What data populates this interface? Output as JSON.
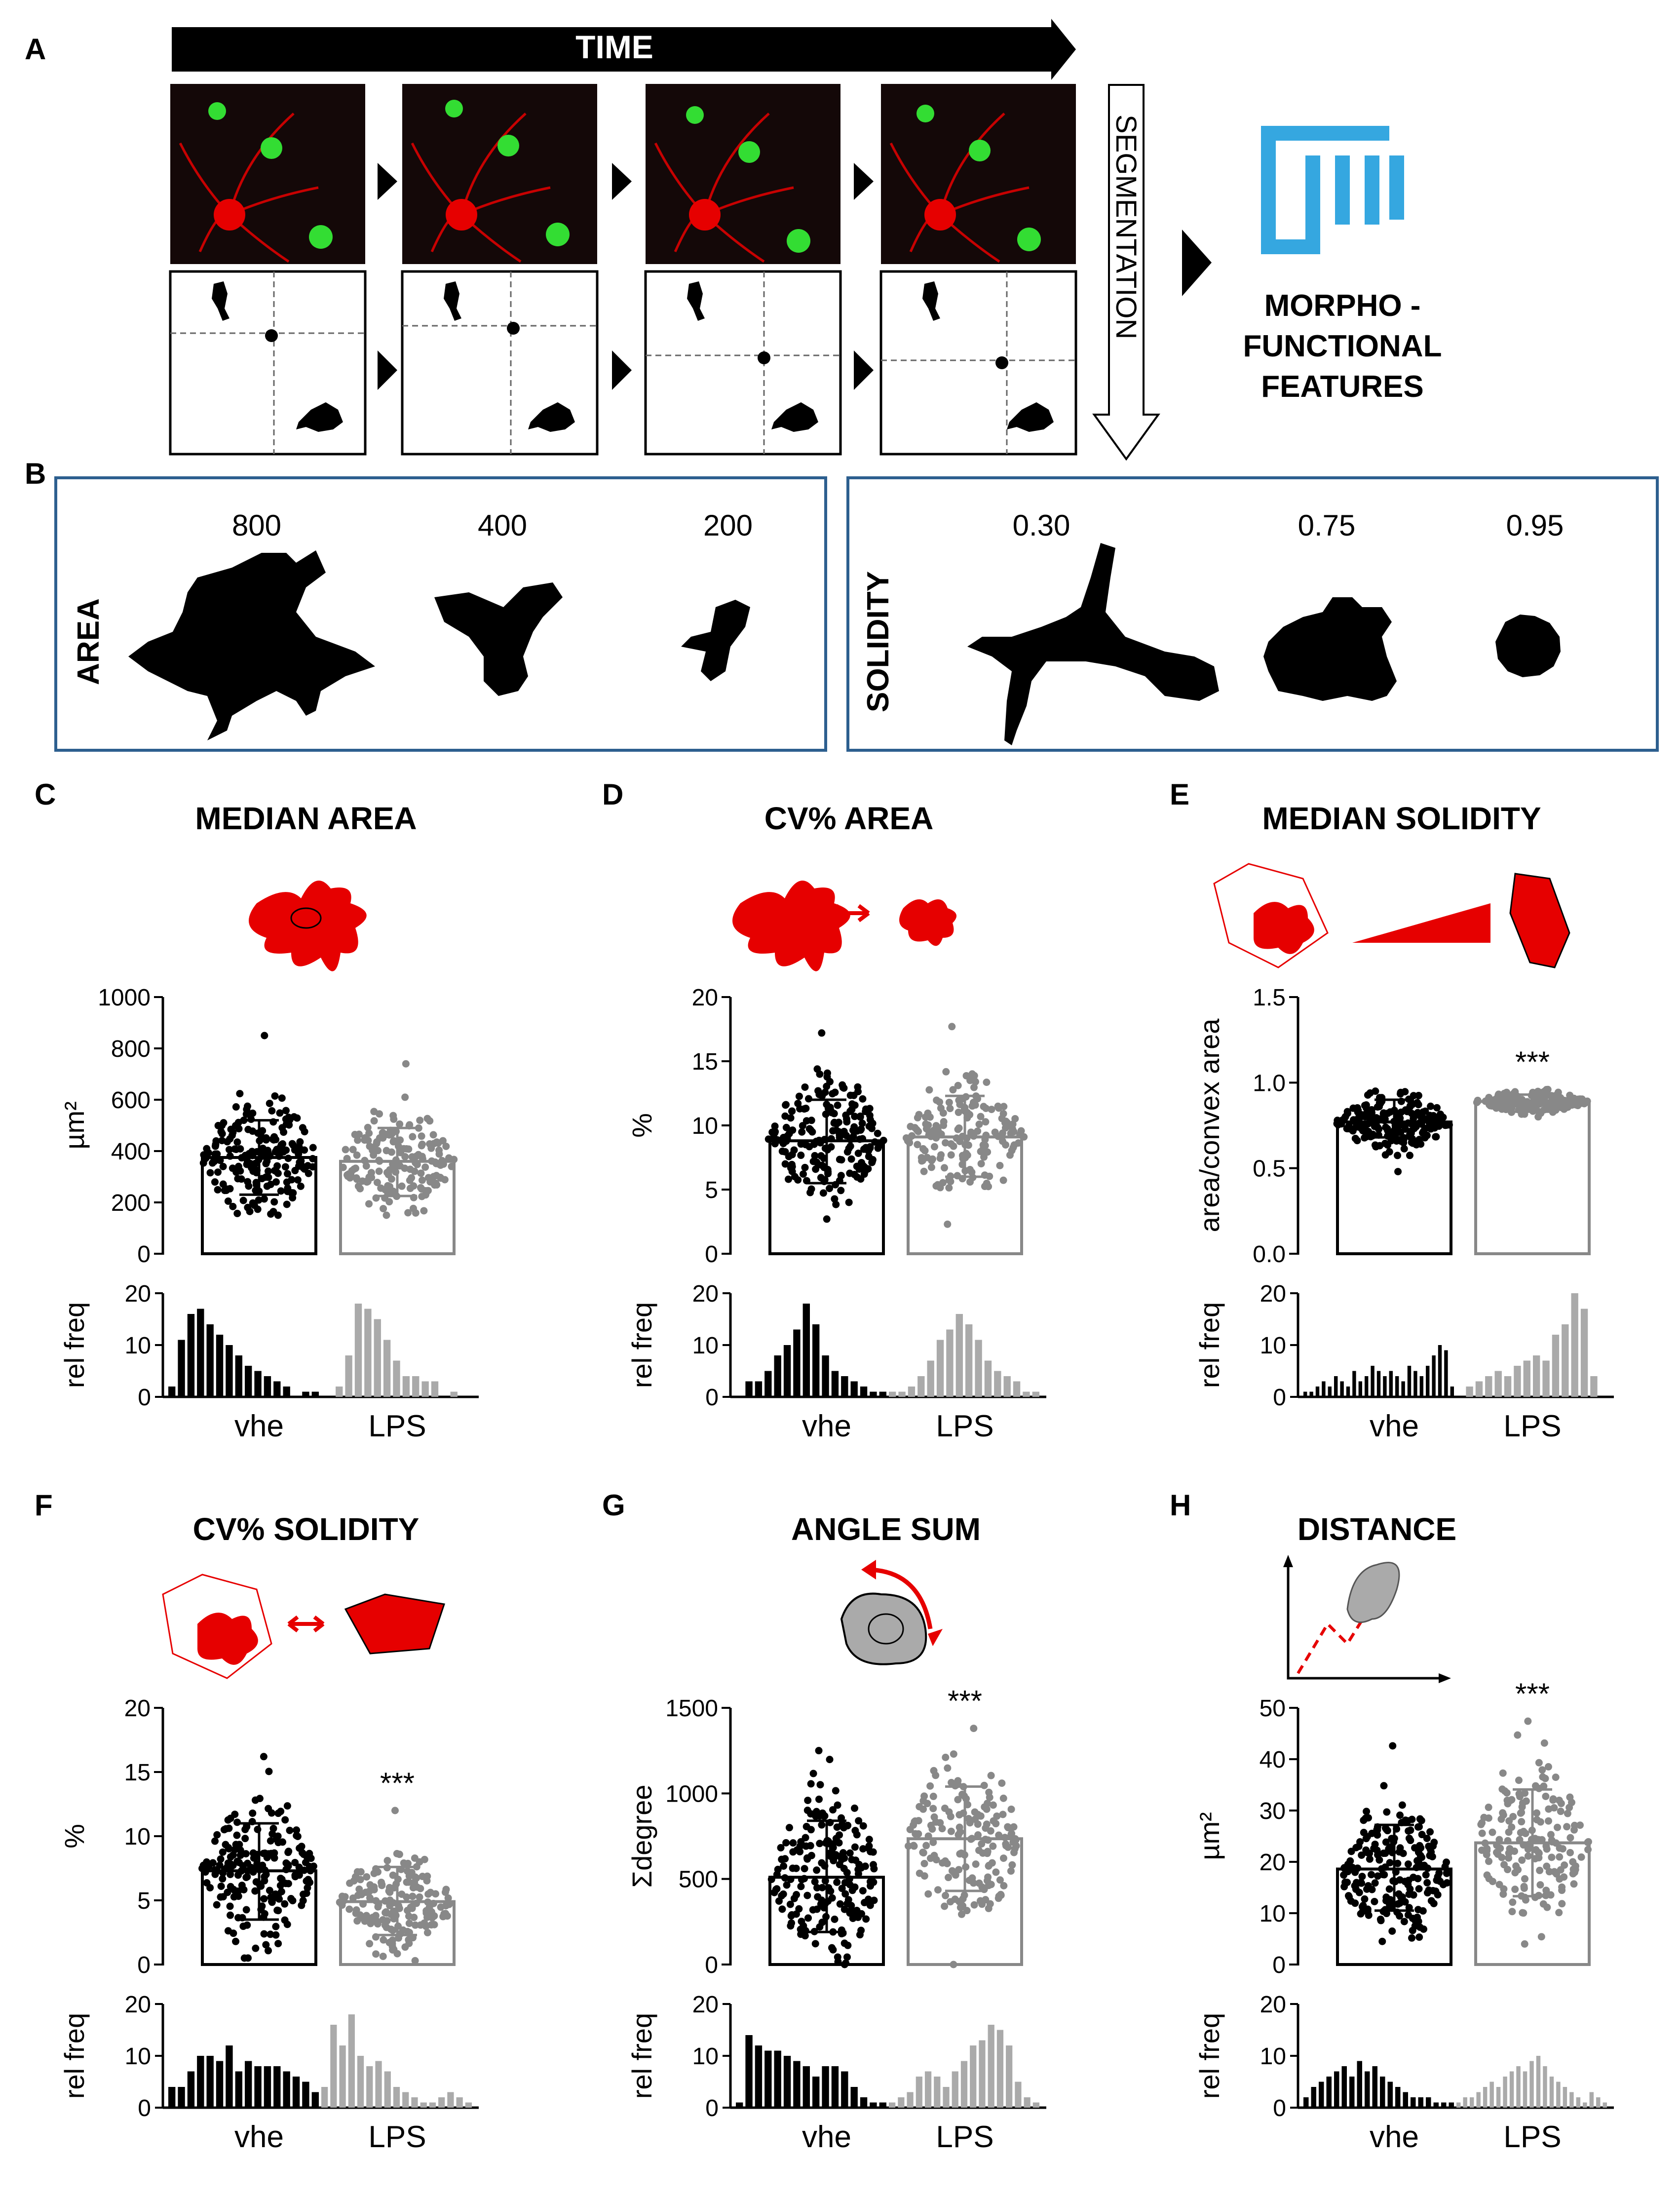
{
  "panel_a": {
    "letter": "A",
    "time_label": "TIME",
    "segmentation_label": "SEGMENTATION",
    "features_lines": [
      "MORPHO -",
      "FUNCTIONAL",
      "FEATURES"
    ],
    "colors": {
      "neuron": "#e60000",
      "microglia": "#33dd33",
      "logo": "#35a7e0",
      "frame_bg": "#140808"
    }
  },
  "panel_b": {
    "letter": "B",
    "area": {
      "label": "AREA",
      "values": [
        "800",
        "400",
        "200"
      ]
    },
    "solidity": {
      "label": "SOLIDITY",
      "values": [
        "0.30",
        "0.75",
        "0.95"
      ]
    },
    "border_color": "#2d5f8f"
  },
  "chart_data": [
    {
      "panel": "C",
      "title": "MEDIAN AREA",
      "type": "bar",
      "ylabel": "µm²",
      "ylim": [
        0,
        1000
      ],
      "yticks": [
        "0",
        "200",
        "400",
        "600",
        "800",
        "1000"
      ],
      "categories": [
        "vhe",
        "LPS"
      ],
      "bar_values": [
        375,
        360
      ],
      "sd": [
        [
          230,
          520
        ],
        [
          225,
          490
        ]
      ],
      "points": {
        "vhe": {
          "n": 200,
          "min": 150,
          "max": 850
        },
        "LPS": {
          "n": 170,
          "min": 150,
          "max": 740
        }
      },
      "significance": "",
      "hist": {
        "ylabel": "rel freq",
        "yticks": [
          "0",
          "10",
          "20"
        ],
        "ymax": 20,
        "vhe": [
          2,
          11,
          16,
          17,
          14,
          12,
          10,
          8,
          6,
          5,
          4,
          3,
          2,
          0,
          1,
          1
        ],
        "LPS": [
          2,
          8,
          18,
          17,
          15,
          11,
          7,
          4,
          4,
          3,
          3,
          0,
          1
        ]
      }
    },
    {
      "panel": "D",
      "title": "CV%  AREA",
      "type": "bar",
      "ylabel": "%",
      "ylim": [
        0,
        20
      ],
      "yticks": [
        "0",
        "5",
        "10",
        "15",
        "20"
      ],
      "categories": [
        "vhe",
        "LPS"
      ],
      "bar_values": [
        8.8,
        9.1
      ],
      "sd": [
        [
          5.5,
          12
        ],
        [
          6.0,
          12.3
        ]
      ],
      "points": {
        "vhe": {
          "n": 200,
          "min": 2.7,
          "max": 17.2
        },
        "LPS": {
          "n": 170,
          "min": 2.3,
          "max": 17.7
        }
      },
      "significance": "",
      "hist": {
        "ylabel": "rel freq",
        "yticks": [
          "0",
          "10",
          "20"
        ],
        "ymax": 20,
        "vhe": [
          0,
          3,
          3,
          5,
          8,
          10,
          13,
          18,
          14,
          8,
          5,
          4,
          3,
          2,
          1,
          1
        ],
        "LPS": [
          1,
          1,
          2,
          4,
          7,
          11,
          13,
          16,
          14,
          11,
          7,
          5,
          4,
          3,
          1,
          1
        ]
      }
    },
    {
      "panel": "E",
      "title": "MEDIAN  SOLIDITY",
      "type": "bar",
      "ylabel": "area/convex area",
      "ylim": [
        0,
        1.5
      ],
      "yticks": [
        "0.0",
        "0.5",
        "1.0",
        "1.5"
      ],
      "categories": [
        "vhe",
        "LPS"
      ],
      "bar_values": [
        0.77,
        0.89
      ],
      "sd": [
        [
          0.68,
          0.9
        ],
        [
          0.83,
          0.93
        ]
      ],
      "points": {
        "vhe": {
          "n": 200,
          "min": 0.48,
          "max": 0.95
        },
        "LPS": {
          "n": 170,
          "min": 0.8,
          "max": 0.96
        }
      },
      "significance": "***",
      "hist": {
        "ylabel": "rel freq",
        "yticks": [
          "0",
          "10",
          "20"
        ],
        "ymax": 20,
        "vhe": [
          1,
          1,
          2,
          3,
          2,
          4,
          3,
          2,
          5,
          3,
          4,
          6,
          5,
          4,
          5,
          4,
          3,
          6,
          5,
          4,
          6,
          8,
          10,
          9,
          2
        ],
        "LPS": [
          2,
          3,
          4,
          5,
          4,
          6,
          7,
          8,
          7,
          12,
          14,
          20,
          17,
          4
        ]
      }
    },
    {
      "panel": "F",
      "title": "CV%  SOLIDITY",
      "type": "bar",
      "ylabel": "%",
      "ylim": [
        0,
        20
      ],
      "yticks": [
        "0",
        "5",
        "10",
        "15",
        "20"
      ],
      "categories": [
        "vhe",
        "LPS"
      ],
      "bar_values": [
        7.3,
        4.9
      ],
      "sd": [
        [
          3.5,
          11.0
        ],
        [
          2.3,
          7.6
        ]
      ],
      "points": {
        "vhe": {
          "n": 200,
          "min": 0.5,
          "max": 16.2
        },
        "LPS": {
          "n": 170,
          "min": 0.3,
          "max": 12.0
        }
      },
      "significance": "***",
      "hist": {
        "ylabel": "rel freq",
        "yticks": [
          "0",
          "10",
          "20"
        ],
        "ymax": 20,
        "vhe": [
          4,
          4,
          7,
          10,
          10,
          9,
          12,
          7,
          9,
          8,
          8,
          8,
          7,
          6,
          5,
          3
        ],
        "LPS": [
          4,
          16,
          12,
          18,
          10,
          8,
          9,
          7,
          4,
          3,
          2,
          1,
          1,
          2,
          3,
          2,
          1
        ]
      }
    },
    {
      "panel": "G",
      "title": "ANGLE SUM",
      "type": "bar",
      "ylabel": "Σdegree",
      "ylim": [
        0,
        1500
      ],
      "yticks": [
        "0",
        "500",
        "1000",
        "1500"
      ],
      "categories": [
        "vhe",
        "LPS"
      ],
      "bar_values": [
        510,
        735
      ],
      "sd": [
        [
          190,
          840
        ],
        [
          430,
          1040
        ]
      ],
      "points": {
        "vhe": {
          "n": 200,
          "min": 0,
          "max": 1250
        },
        "LPS": {
          "n": 170,
          "min": 0,
          "max": 1380
        }
      },
      "significance": "***",
      "hist": {
        "ylabel": "rel freq",
        "yticks": [
          "0",
          "10",
          "20"
        ],
        "ymax": 20,
        "vhe": [
          1,
          14,
          12,
          11,
          11,
          10,
          9,
          8,
          6,
          8,
          8,
          7,
          4,
          2,
          1,
          1
        ],
        "LPS": [
          1,
          2,
          3,
          6,
          7,
          6,
          4,
          7,
          9,
          12,
          13,
          16,
          15,
          12,
          5,
          2,
          1
        ]
      }
    },
    {
      "panel": "H",
      "title": "DISTANCE",
      "type": "bar",
      "ylabel": "µm²",
      "ylim": [
        0,
        50
      ],
      "yticks": [
        "0",
        "10",
        "20",
        "30",
        "40",
        "50"
      ],
      "categories": [
        "vhe",
        "LPS"
      ],
      "bar_values": [
        18.6,
        23.7
      ],
      "sd": [
        [
          10.5,
          27.2
        ],
        [
          13.3,
          34.1
        ]
      ],
      "points": {
        "vhe": {
          "n": 200,
          "min": 4.5,
          "max": 42.6
        },
        "LPS": {
          "n": 170,
          "min": 4.0,
          "max": 47.4
        }
      },
      "significance": "***",
      "hist": {
        "ylabel": "rel freq",
        "yticks": [
          "0",
          "10",
          "20"
        ],
        "ymax": 20,
        "vhe": [
          2,
          4,
          5,
          6,
          7,
          8,
          6,
          9,
          7,
          8,
          6,
          5,
          4,
          3,
          2,
          2,
          2,
          1,
          1,
          1
        ],
        "LPS": [
          1,
          2,
          2,
          3,
          4,
          5,
          4,
          6,
          7,
          8,
          7,
          9,
          10,
          8,
          6,
          5,
          4,
          3,
          2,
          1,
          3,
          2,
          1
        ]
      }
    }
  ]
}
